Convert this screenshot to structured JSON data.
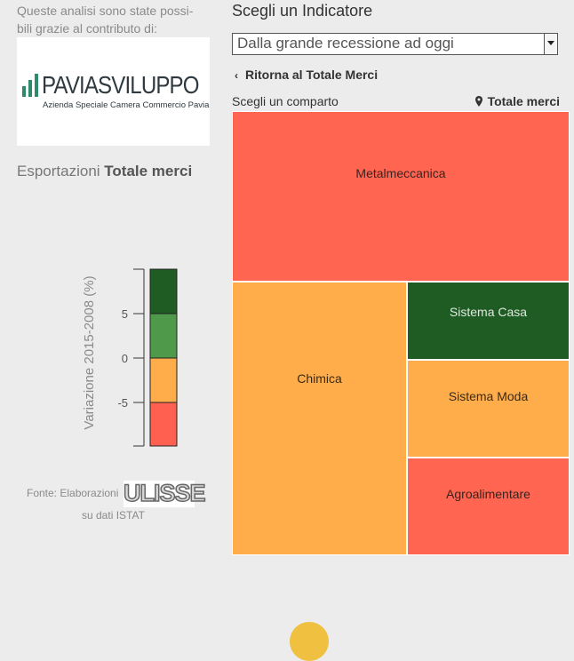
{
  "intro": {
    "line1": "Queste analisi sono state possi-",
    "line2": "bili grazie al contributo di:"
  },
  "logo": {
    "name": "PAVIASVILUPPO",
    "subtitle": "Azienda Speciale Camera Commercio Pavia",
    "color": "#2e8a6a"
  },
  "export_title": {
    "prefix": "Esportazioni ",
    "bold": "Totale merci"
  },
  "legend": {
    "axis_label": "Variazione 2015-2008 (%)",
    "ticks": [
      "5",
      "0",
      "-5"
    ],
    "bands": [
      {
        "name": "strong-positive",
        "color": "#1e5c23"
      },
      {
        "name": "positive",
        "color": "#4e9a4a"
      },
      {
        "name": "negative",
        "color": "#ffad4a"
      },
      {
        "name": "strong-negative",
        "color": "#ff6050"
      }
    ]
  },
  "source": {
    "prefix": "Fonte: Elaborazioni",
    "brand": "ULISSE",
    "suffix": "su dati ISTAT"
  },
  "indicator": {
    "title": "Scegli un Indicatore",
    "selected": "Dalla grande recessione ad oggi",
    "back_label": "Ritorna al Totale Merci",
    "comparto_label": "Scegli un comparto",
    "current": "Totale merci"
  },
  "treemap": {
    "cells": [
      {
        "label": "Metalmeccanica",
        "color": "#ff6550",
        "text_color": "#3a2220"
      },
      {
        "label": "Chimica",
        "color": "#ffad4a",
        "text_color": "#3a2a18"
      },
      {
        "label": "Sistema Casa",
        "color": "#1e5c23",
        "text_color": "#dfe8df"
      },
      {
        "label": "Sistema Moda",
        "color": "#ffad4a",
        "text_color": "#3a2a18"
      },
      {
        "label": "Agroalimentare",
        "color": "#ff6550",
        "text_color": "#3a2220"
      }
    ]
  }
}
